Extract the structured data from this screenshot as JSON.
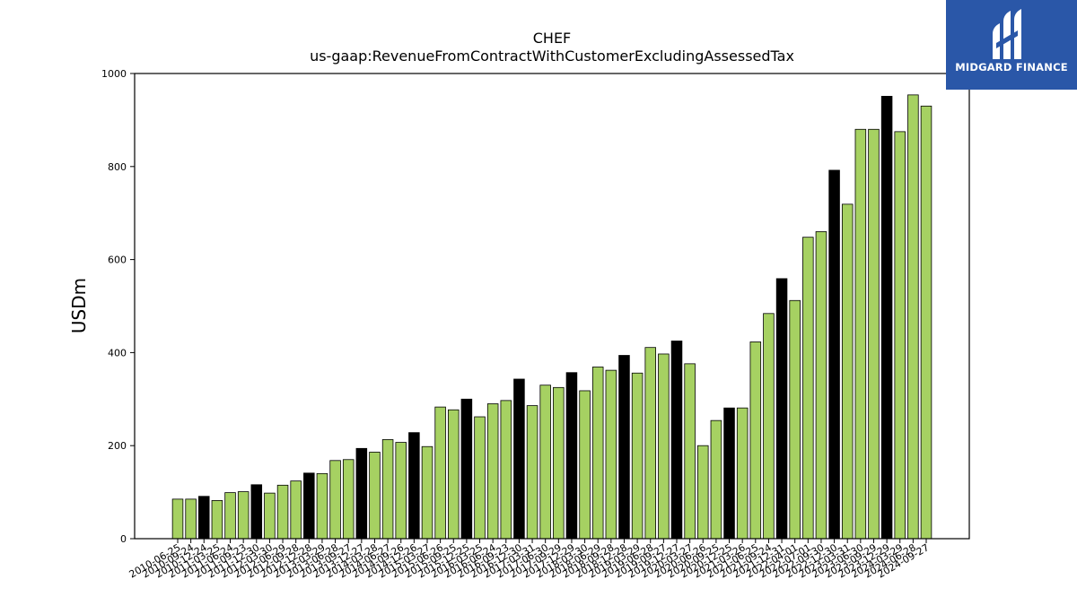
{
  "chart_data": {
    "type": "bar",
    "title": "CHEF",
    "subtitle": "us-gaap:RevenueFromContractWithCustomerExcludingAssessedTax",
    "ylabel": "USDm",
    "xlabel": "",
    "ylim": [
      0,
      1000
    ],
    "yticks": [
      0,
      200,
      400,
      600,
      800,
      1000
    ],
    "grid": false,
    "colors": {
      "quarter": "#a6d162",
      "annual": "#000000",
      "edge": "#000000"
    },
    "categories": [
      "2010-06-25",
      "2010-09-24",
      "2010-12-24",
      "2011-03-25",
      "2011-06-24",
      "2011-09-23",
      "2011-12-30",
      "2012-03-30",
      "2012-06-29",
      "2012-09-28",
      "2012-12-28",
      "2013-03-29",
      "2013-06-28",
      "2013-09-27",
      "2013-12-27",
      "2014-03-28",
      "2014-06-27",
      "2014-09-26",
      "2014-12-26",
      "2015-03-27",
      "2015-06-26",
      "2015-09-25",
      "2015-12-25",
      "2016-03-25",
      "2016-06-24",
      "2016-09-23",
      "2016-12-30",
      "2017-03-31",
      "2017-06-30",
      "2017-09-29",
      "2017-12-29",
      "2018-03-30",
      "2018-06-29",
      "2018-09-28",
      "2018-12-28",
      "2019-03-29",
      "2019-06-28",
      "2019-09-27",
      "2019-12-27",
      "2020-03-27",
      "2020-06-26",
      "2020-09-25",
      "2020-12-25",
      "2021-03-26",
      "2021-06-25",
      "2021-09-24",
      "2021-12-31",
      "2022-04-01",
      "2022-07-01",
      "2022-09-30",
      "2022-12-30",
      "2023-03-31",
      "2023-06-30",
      "2023-09-29",
      "2023-12-29",
      "2024-03-29",
      "2024-06-28",
      "2024-09-27"
    ],
    "values": [
      85,
      85,
      91,
      82,
      99,
      101,
      116,
      98,
      115,
      124,
      141,
      140,
      168,
      170,
      194,
      186,
      213,
      207,
      228,
      198,
      283,
      277,
      300,
      262,
      290,
      297,
      343,
      286,
      330,
      325,
      357,
      318,
      369,
      362,
      394,
      356,
      411,
      397,
      425,
      376,
      200,
      254,
      281,
      281,
      423,
      484,
      559,
      512,
      648,
      660,
      792,
      719,
      880,
      880,
      951,
      875,
      954,
      930
    ],
    "annual_flags": [
      false,
      false,
      true,
      false,
      false,
      false,
      true,
      false,
      false,
      false,
      true,
      false,
      false,
      false,
      true,
      false,
      false,
      false,
      true,
      false,
      false,
      false,
      true,
      false,
      false,
      false,
      true,
      false,
      false,
      false,
      true,
      false,
      false,
      false,
      true,
      false,
      false,
      false,
      true,
      false,
      false,
      false,
      true,
      false,
      false,
      false,
      true,
      false,
      false,
      false,
      true,
      false,
      false,
      false,
      true,
      false,
      false,
      false
    ]
  },
  "logo": {
    "text": "MIDGARD FINANCE"
  }
}
